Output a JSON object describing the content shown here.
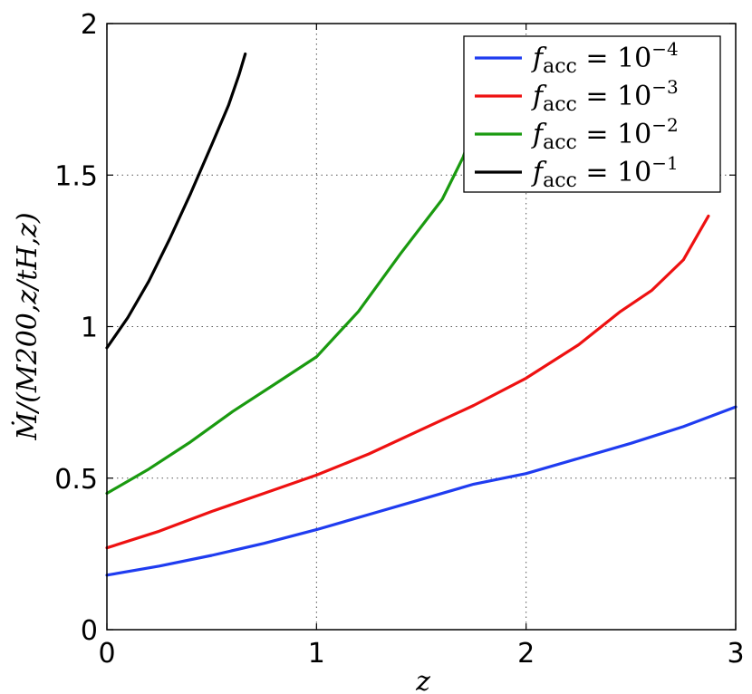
{
  "chart_data": {
    "type": "line",
    "xlabel": "z",
    "ylabel": "Ṁ/(M200,z/tH,z)",
    "xlim": [
      0,
      3
    ],
    "ylim": [
      0,
      2
    ],
    "xticks": [
      0,
      1,
      2,
      3
    ],
    "yticks": [
      0,
      0.5,
      1,
      1.5,
      2
    ],
    "xtick_labels": [
      "0",
      "1",
      "2",
      "3"
    ],
    "ytick_labels": [
      "0",
      "0.5",
      "1",
      "1.5",
      "2"
    ],
    "grid": true,
    "legend_position": "top-right",
    "series": [
      {
        "legend": {
          "base": "f",
          "sub": "acc",
          "op": " = 10",
          "exp": "−4"
        },
        "color": "#1f3cf0",
        "x": [
          0,
          0.25,
          0.5,
          0.75,
          1.0,
          1.25,
          1.5,
          1.75,
          2.0,
          2.25,
          2.5,
          2.75,
          3.0
        ],
        "y": [
          0.18,
          0.21,
          0.245,
          0.285,
          0.33,
          0.38,
          0.43,
          0.48,
          0.515,
          0.565,
          0.615,
          0.67,
          0.735
        ]
      },
      {
        "legend": {
          "base": "f",
          "sub": "acc",
          "op": " = 10",
          "exp": "−3"
        },
        "color": "#ee1111",
        "x": [
          0,
          0.25,
          0.5,
          0.75,
          1.0,
          1.25,
          1.5,
          1.75,
          2.0,
          2.25,
          2.45,
          2.6,
          2.75,
          2.87
        ],
        "y": [
          0.27,
          0.325,
          0.39,
          0.45,
          0.51,
          0.58,
          0.66,
          0.74,
          0.83,
          0.94,
          1.05,
          1.12,
          1.22,
          1.365
        ]
      },
      {
        "legend": {
          "base": "f",
          "sub": "acc",
          "op": " = 10",
          "exp": "−2"
        },
        "color": "#1a9a10",
        "x": [
          0,
          0.2,
          0.4,
          0.6,
          0.8,
          1.0,
          1.2,
          1.4,
          1.6,
          1.7,
          1.72
        ],
        "y": [
          0.45,
          0.53,
          0.62,
          0.72,
          0.81,
          0.9,
          1.05,
          1.24,
          1.42,
          1.56,
          1.6
        ]
      },
      {
        "legend": {
          "base": "f",
          "sub": "acc",
          "op": " = 10",
          "exp": "−1"
        },
        "color": "#000000",
        "x": [
          0,
          0.1,
          0.2,
          0.3,
          0.4,
          0.5,
          0.58,
          0.63,
          0.66
        ],
        "y": [
          0.93,
          1.03,
          1.15,
          1.29,
          1.44,
          1.6,
          1.73,
          1.83,
          1.9
        ]
      }
    ]
  }
}
